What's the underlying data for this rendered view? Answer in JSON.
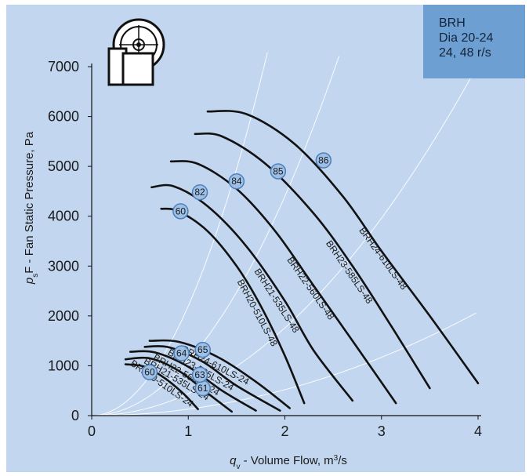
{
  "chart_data": {
    "type": "line",
    "title": "",
    "xlabel": "q_v - Volume Flow, m³/s",
    "xlabel_parts": {
      "symbol": "q",
      "sub": "v",
      "text": " - Volume Flow, m",
      "sup": "3",
      "after": "/s"
    },
    "ylabel": "p_sF - Fan Static Pressure, Pa",
    "ylabel_parts": {
      "symbol": "p",
      "sub": "s",
      "text": "F - Fan Static Pressure, Pa"
    },
    "xlim": [
      0,
      4
    ],
    "ylim": [
      0,
      7000
    ],
    "x_ticks": [
      0,
      1,
      2,
      3,
      4
    ],
    "y_ticks": [
      0,
      1000,
      2000,
      3000,
      4000,
      5000,
      6000,
      7000
    ],
    "info_box": [
      "BRH",
      "Dia 20-24",
      "24, 48 r/s"
    ],
    "grid": false,
    "series": [
      {
        "name": "BRH20-510LS-48",
        "x": [
          0.72,
          0.9,
          1.2,
          1.5,
          1.75,
          2.0,
          2.2
        ],
        "y": [
          4150,
          4100,
          3700,
          3000,
          2200,
          1200,
          250
        ]
      },
      {
        "name": "BRH21-535LS-48",
        "x": [
          0.62,
          0.85,
          1.2,
          1.6,
          2.0,
          2.3,
          2.7
        ],
        "y": [
          4580,
          4600,
          4200,
          3400,
          2300,
          1300,
          300
        ]
      },
      {
        "name": "BRH22-560LS-48",
        "x": [
          0.82,
          1.1,
          1.5,
          1.9,
          2.3,
          2.7,
          3.15
        ],
        "y": [
          5100,
          5050,
          4550,
          3700,
          2600,
          1500,
          250
        ]
      },
      {
        "name": "BRH23-585LS-48",
        "x": [
          1.07,
          1.35,
          1.8,
          2.3,
          2.7,
          3.1,
          3.5
        ],
        "y": [
          5650,
          5600,
          5050,
          4050,
          3000,
          1800,
          550
        ]
      },
      {
        "name": "BRH24-610LS-48",
        "x": [
          1.2,
          1.6,
          2.1,
          2.6,
          3.0,
          3.5,
          4.0
        ],
        "y": [
          6100,
          6050,
          5450,
          4400,
          3300,
          2000,
          650
        ]
      },
      {
        "name": "BRH20-510LS-24",
        "x": [
          0.35,
          0.55,
          0.75,
          0.95,
          1.1
        ],
        "y": [
          1030,
          980,
          760,
          440,
          130
        ]
      },
      {
        "name": "BRH21-535LS-24",
        "x": [
          0.35,
          0.6,
          0.9,
          1.2,
          1.45
        ],
        "y": [
          1130,
          1150,
          900,
          450,
          80
        ]
      },
      {
        "name": "BRH22-560LS-24",
        "x": [
          0.4,
          0.65,
          1.0,
          1.35,
          1.7
        ],
        "y": [
          1280,
          1270,
          980,
          500,
          100
        ]
      },
      {
        "name": "BRH23-585LS-24",
        "x": [
          0.55,
          0.8,
          1.15,
          1.5,
          1.95
        ],
        "y": [
          1380,
          1370,
          1080,
          600,
          100
        ]
      },
      {
        "name": "BRH24-610LS-24",
        "x": [
          0.6,
          0.9,
          1.3,
          1.7,
          2.05
        ],
        "y": [
          1500,
          1480,
          1180,
          680,
          150
        ]
      }
    ],
    "efficiency_markers": [
      {
        "label": "60",
        "x": 0.92,
        "y": 4100
      },
      {
        "label": "82",
        "x": 1.12,
        "y": 4480
      },
      {
        "label": "84",
        "x": 1.5,
        "y": 4700
      },
      {
        "label": "85",
        "x": 1.93,
        "y": 4900
      },
      {
        "label": "86",
        "x": 2.4,
        "y": 5120
      },
      {
        "label": "60",
        "x": 0.6,
        "y": 870
      },
      {
        "label": "61",
        "x": 1.15,
        "y": 550
      },
      {
        "label": "63",
        "x": 1.12,
        "y": 820
      },
      {
        "label": "64",
        "x": 0.93,
        "y": 1250
      },
      {
        "label": "65",
        "x": 1.15,
        "y": 1320
      }
    ],
    "system_lines": [
      {
        "k": 130
      },
      {
        "k": 440
      },
      {
        "k": 1100
      },
      {
        "k": 2200
      }
    ]
  },
  "colors": {
    "plot_bg": "#c2d6ef",
    "info_box": "#6d9fd2",
    "curve": "#111111",
    "marker_fill": "#9ec0e6",
    "marker_stroke": "#4f7fb8",
    "system_line": "#ffffff"
  },
  "icon": "centrifugal-fan-icon"
}
